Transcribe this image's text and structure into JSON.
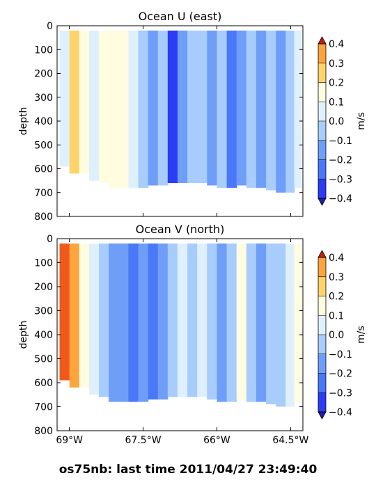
{
  "footer": "os75nb: last time 2011/04/27 23:49:40",
  "chart_data": [
    {
      "type": "heatmap",
      "title": "Ocean U (east)",
      "ylabel": "depth",
      "ylim": [
        800,
        0
      ],
      "yticks": [
        "0",
        "100",
        "200",
        "300",
        "400",
        "500",
        "600",
        "700",
        "800"
      ],
      "xlim": [
        -69.25,
        -64.25
      ],
      "xticks": [
        "69°W",
        "67.5°W",
        "66°W",
        "64.5°W"
      ],
      "levels": [
        -0.4,
        -0.3,
        -0.2,
        -0.1,
        0.0,
        0.1,
        0.2,
        0.3,
        0.4
      ],
      "colorbar_label": "m/s",
      "colorbar_ticks": [
        "0.4",
        "0.3",
        "0.2",
        "0.1",
        "0.0",
        "−0.1",
        "−0.2",
        "−0.3",
        "−0.4"
      ],
      "colors": [
        "#2b3cf5",
        "#4a78f8",
        "#6e9ef8",
        "#a8cdfc",
        "#dff0fd",
        "#fffce0",
        "#fed36a",
        "#fca53c",
        "#ef5a1c"
      ],
      "lon": [
        -69.1,
        -68.9,
        -68.7,
        -68.5,
        -68.3,
        -68.1,
        -67.9,
        -67.7,
        -67.5,
        -67.3,
        -67.1,
        -66.9,
        -66.7,
        -66.5,
        -66.3,
        -66.1,
        -65.9,
        -65.7,
        -65.5,
        -65.3,
        -65.1,
        -64.9,
        -64.7,
        -64.5,
        -64.35
      ],
      "bottom_depth": [
        590,
        620,
        620,
        650,
        660,
        680,
        680,
        680,
        680,
        670,
        670,
        660,
        660,
        660,
        660,
        670,
        680,
        680,
        670,
        680,
        680,
        690,
        700,
        700,
        680
      ],
      "u": [
        0.05,
        0.25,
        0.15,
        0.05,
        0.1,
        0.15,
        0.15,
        0.05,
        -0.05,
        -0.15,
        -0.05,
        -0.35,
        -0.2,
        -0.05,
        -0.1,
        -0.15,
        -0.05,
        -0.25,
        -0.15,
        -0.05,
        -0.15,
        -0.05,
        -0.15,
        -0.05,
        0.05
      ]
    },
    {
      "type": "heatmap",
      "title": "Ocean V (north)",
      "ylabel": "depth",
      "ylim": [
        800,
        0
      ],
      "yticks": [
        "0",
        "100",
        "200",
        "300",
        "400",
        "500",
        "600",
        "700",
        "800"
      ],
      "xlim": [
        -69.25,
        -64.25
      ],
      "xticks": [
        "69°W",
        "67.5°W",
        "66°W",
        "64.5°W"
      ],
      "levels": [
        -0.4,
        -0.3,
        -0.2,
        -0.1,
        0.0,
        0.1,
        0.2,
        0.3,
        0.4
      ],
      "colorbar_label": "m/s",
      "colorbar_ticks": [
        "0.4",
        "0.3",
        "0.2",
        "0.1",
        "0.0",
        "−0.1",
        "−0.2",
        "−0.3",
        "−0.4"
      ],
      "colors": [
        "#2b3cf5",
        "#4a78f8",
        "#6e9ef8",
        "#a8cdfc",
        "#dff0fd",
        "#fffce0",
        "#fed36a",
        "#fca53c",
        "#ef5a1c"
      ],
      "lon": [
        -69.1,
        -68.9,
        -68.7,
        -68.5,
        -68.3,
        -68.1,
        -67.9,
        -67.7,
        -67.5,
        -67.3,
        -67.1,
        -66.9,
        -66.7,
        -66.5,
        -66.3,
        -66.1,
        -65.9,
        -65.7,
        -65.5,
        -65.3,
        -65.1,
        -64.9,
        -64.7,
        -64.5,
        -64.35
      ],
      "bottom_depth": [
        590,
        620,
        620,
        650,
        660,
        680,
        680,
        680,
        680,
        670,
        670,
        660,
        660,
        660,
        660,
        670,
        680,
        680,
        670,
        680,
        680,
        690,
        700,
        700,
        680
      ],
      "v": [
        0.5,
        0.35,
        0.15,
        0.05,
        -0.05,
        -0.15,
        -0.2,
        -0.25,
        -0.15,
        -0.25,
        -0.15,
        -0.05,
        0.05,
        -0.05,
        0.05,
        -0.05,
        -0.15,
        -0.05,
        0.15,
        -0.1,
        -0.2,
        -0.1,
        -0.05,
        0.05,
        0.1
      ]
    }
  ]
}
